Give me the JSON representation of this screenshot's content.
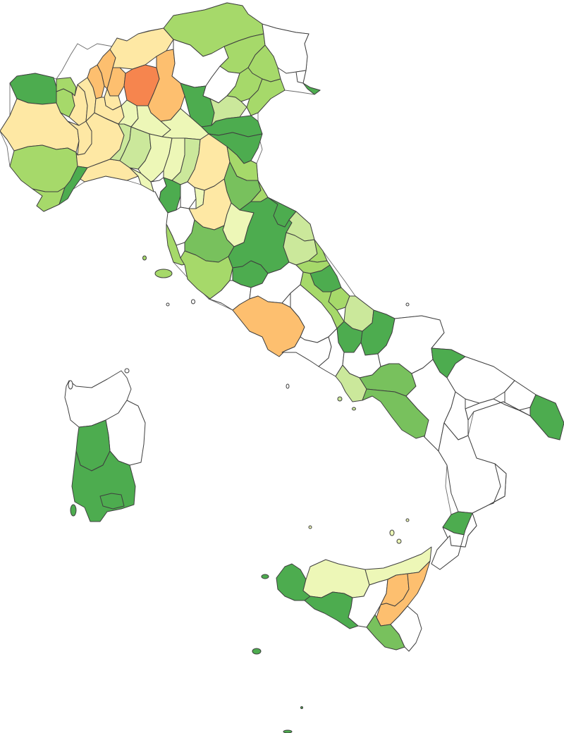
{
  "map": {
    "type": "choropleth",
    "country": "Italy",
    "unit": "province",
    "legend": null,
    "title": null,
    "palette": {
      "class_1": "#f6854e",
      "class_2": "#fdbf6f",
      "class_3": "#fee8a4",
      "class_4": "#edf7b7",
      "class_5": "#cbe89b",
      "class_6": "#a6d96a",
      "class_7": "#78c15d",
      "class_8": "#4dac4f",
      "no_data": "#ffffff"
    },
    "provinces": [
      {
        "id": "aosta",
        "class": "class_8"
      },
      {
        "id": "torino",
        "class": "class_3"
      },
      {
        "id": "cuneo",
        "class": "class_6"
      },
      {
        "id": "biella",
        "class": "class_6"
      },
      {
        "id": "vercelli",
        "class": "class_3"
      },
      {
        "id": "novara",
        "class": "class_3"
      },
      {
        "id": "verbano",
        "class": "class_6"
      },
      {
        "id": "asti",
        "class": "class_3"
      },
      {
        "id": "alessandria",
        "class": "class_3"
      },
      {
        "id": "varese",
        "class": "class_2"
      },
      {
        "id": "como",
        "class": "class_2"
      },
      {
        "id": "sondrio",
        "class": "class_3"
      },
      {
        "id": "lecco",
        "class": "class_2"
      },
      {
        "id": "bergamo",
        "class": "class_1"
      },
      {
        "id": "brescia",
        "class": "class_2"
      },
      {
        "id": "milano",
        "class": "class_3"
      },
      {
        "id": "monza",
        "class": "class_3"
      },
      {
        "id": "lodi",
        "class": "class_4"
      },
      {
        "id": "pavia",
        "class": "class_5"
      },
      {
        "id": "cremona",
        "class": "class_4"
      },
      {
        "id": "mantova",
        "class": "class_4"
      },
      {
        "id": "trento",
        "class": "class_no"
      },
      {
        "id": "bolzano",
        "class": "class_6"
      },
      {
        "id": "verona",
        "class": "class_8"
      },
      {
        "id": "vicenza",
        "class": "class_no"
      },
      {
        "id": "belluno",
        "class": "class_6"
      },
      {
        "id": "treviso",
        "class": "class_6"
      },
      {
        "id": "venezia",
        "class": "class_6"
      },
      {
        "id": "padova",
        "class": "class_5"
      },
      {
        "id": "rovigo",
        "class": "class_8"
      },
      {
        "id": "udine",
        "class": "class_no"
      },
      {
        "id": "pordenone",
        "class": "class_6"
      },
      {
        "id": "gorizia",
        "class": "class_no"
      },
      {
        "id": "trieste",
        "class": "class_8"
      },
      {
        "id": "genova",
        "class": "class_3"
      },
      {
        "id": "savona",
        "class": "class_8"
      },
      {
        "id": "imperia",
        "class": "class_6"
      },
      {
        "id": "la_spezia",
        "class": "class_4"
      },
      {
        "id": "piacenza",
        "class": "class_5"
      },
      {
        "id": "parma",
        "class": "class_4"
      },
      {
        "id": "reggio_emilia",
        "class": "class_4"
      },
      {
        "id": "modena",
        "class": "class_5"
      },
      {
        "id": "bologna",
        "class": "class_3"
      },
      {
        "id": "ferrara",
        "class": "class_8"
      },
      {
        "id": "ravenna",
        "class": "class_6"
      },
      {
        "id": "forli",
        "class": "class_7"
      },
      {
        "id": "rimini",
        "class": "class_6"
      },
      {
        "id": "massa",
        "class": "class_no"
      },
      {
        "id": "lucca",
        "class": "class_8"
      },
      {
        "id": "pistoia",
        "class": "class_no"
      },
      {
        "id": "prato",
        "class": "class_4"
      },
      {
        "id": "firenze",
        "class": "class_3"
      },
      {
        "id": "arezzo",
        "class": "class_4"
      },
      {
        "id": "pisa",
        "class": "class_no"
      },
      {
        "id": "livorno",
        "class": "class_6"
      },
      {
        "id": "siena",
        "class": "class_7"
      },
      {
        "id": "grosseto",
        "class": "class_6"
      },
      {
        "id": "perugia",
        "class": "class_8"
      },
      {
        "id": "terni",
        "class": "class_8"
      },
      {
        "id": "pesaro",
        "class": "class_8"
      },
      {
        "id": "ancona",
        "class": "class_5"
      },
      {
        "id": "macerata",
        "class": "class_5"
      },
      {
        "id": "fermo",
        "class": "class_6"
      },
      {
        "id": "ascoli",
        "class": "class_6"
      },
      {
        "id": "viterbo",
        "class": "class_no"
      },
      {
        "id": "rieti",
        "class": "class_no"
      },
      {
        "id": "roma",
        "class": "class_2"
      },
      {
        "id": "latina",
        "class": "class_no"
      },
      {
        "id": "frosinone",
        "class": "class_no"
      },
      {
        "id": "teramo",
        "class": "class_8"
      },
      {
        "id": "pescara",
        "class": "class_6"
      },
      {
        "id": "chieti",
        "class": "class_5"
      },
      {
        "id": "laquila",
        "class": "class_6"
      },
      {
        "id": "isernia",
        "class": "class_8"
      },
      {
        "id": "campobasso",
        "class": "class_8"
      },
      {
        "id": "caserta",
        "class": "class_no"
      },
      {
        "id": "benevento",
        "class": "class_no"
      },
      {
        "id": "napoli",
        "class": "class_5"
      },
      {
        "id": "avellino",
        "class": "class_7"
      },
      {
        "id": "salerno",
        "class": "class_7"
      },
      {
        "id": "foggia",
        "class": "class_no"
      },
      {
        "id": "bat",
        "class": "class_8"
      },
      {
        "id": "bari",
        "class": "class_no"
      },
      {
        "id": "taranto",
        "class": "class_no"
      },
      {
        "id": "brindisi",
        "class": "class_no"
      },
      {
        "id": "lecce",
        "class": "class_8"
      },
      {
        "id": "potenza",
        "class": "class_no"
      },
      {
        "id": "matera",
        "class": "class_no"
      },
      {
        "id": "cosenza",
        "class": "class_no"
      },
      {
        "id": "crotone",
        "class": "class_no"
      },
      {
        "id": "catanzaro",
        "class": "class_8"
      },
      {
        "id": "vibo",
        "class": "class_no"
      },
      {
        "id": "reggio_calabria",
        "class": "class_no"
      },
      {
        "id": "trapani",
        "class": "class_8"
      },
      {
        "id": "palermo",
        "class": "class_4"
      },
      {
        "id": "messina",
        "class": "class_4"
      },
      {
        "id": "agrigento",
        "class": "class_8"
      },
      {
        "id": "caltanissetta",
        "class": "class_no"
      },
      {
        "id": "enna",
        "class": "class_2"
      },
      {
        "id": "catania",
        "class": "class_2"
      },
      {
        "id": "ragusa",
        "class": "class_7"
      },
      {
        "id": "siracusa",
        "class": "class_no"
      },
      {
        "id": "sassari",
        "class": "class_no"
      },
      {
        "id": "nuoro",
        "class": "class_no"
      },
      {
        "id": "oristano",
        "class": "class_8"
      },
      {
        "id": "sud_sardegna",
        "class": "class_8"
      },
      {
        "id": "cagliari",
        "class": "class_8"
      }
    ]
  }
}
